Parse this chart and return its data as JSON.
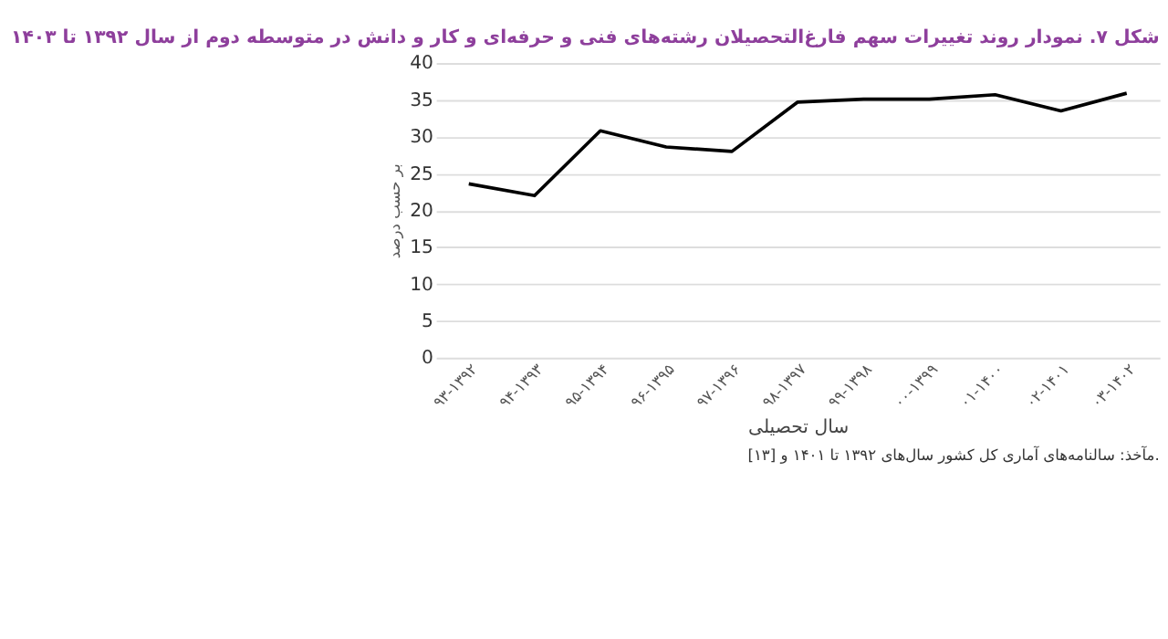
{
  "chart_data": {
    "type": "line",
    "title": "شکل ۷. نمودار روند تغییرات سهم فارغ‌التحصیلان رشته‌های فنی و حرفه‌ای و کار و دانش در متوسطه دوم از سال ۱۳۹۲ تا ۱۴۰۳",
    "xlabel": "سال تحصیلی",
    "ylabel": "بر حسب درصد",
    "categories": [
      "۹۳-۱۳۹۲",
      "۹۴-۱۳۹۳",
      "۹۵-۱۳۹۴",
      "۹۶-۱۳۹۵",
      "۹۷-۱۳۹۶",
      "۹۸-۱۳۹۷",
      "۹۹-۱۳۹۸",
      "۰۰-۱۳۹۹",
      "۰۱-۱۴۰۰",
      "۰۲-۱۴۰۱",
      "۰۳-۱۴۰۲"
    ],
    "series": [
      {
        "color": "#000000",
        "values": [
          23.6,
          22.0,
          30.8,
          28.6,
          28.0,
          34.7,
          35.1,
          35.1,
          35.7,
          33.5,
          35.9
        ]
      }
    ],
    "ylim": [
      0,
      40
    ],
    "yticks": [
      0,
      5,
      10,
      15,
      20,
      25,
      30,
      35,
      40
    ],
    "grid": "y",
    "marker": "none",
    "line_style": "solid",
    "annotations": [
      "مآخذ: سالنامه‌های آماری کل کشور سال‌های ۱۳۹۲ تا ۱۴۰۱ و [۱۳]."
    ]
  }
}
